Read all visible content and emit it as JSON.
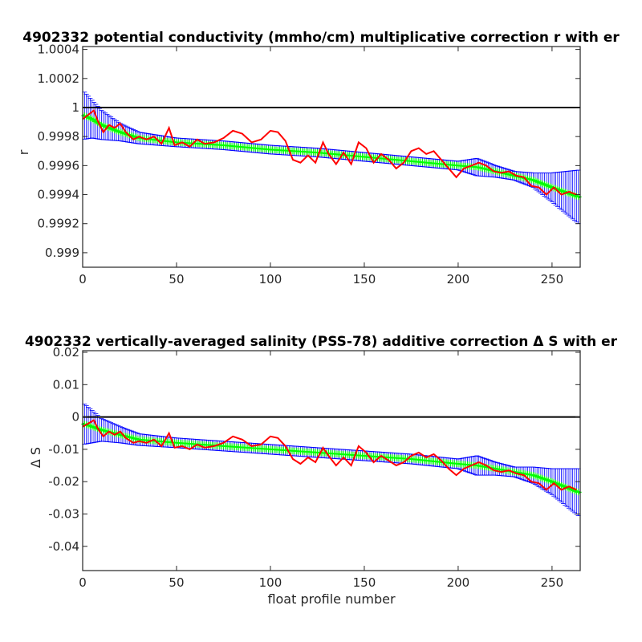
{
  "chart_data": [
    {
      "type": "line",
      "title": "4902332 potential conductivity (mmho/cm) multiplicative correction r with er",
      "xlabel": "",
      "ylabel": "r",
      "xlim": [
        0,
        265
      ],
      "ylim": [
        0.9989,
        1.00042
      ],
      "xticks": [
        0,
        50,
        100,
        150,
        200,
        250
      ],
      "xtick_labels": [
        "0",
        "50",
        "100",
        "150",
        "200",
        "250"
      ],
      "yticks": [
        0.999,
        0.9992,
        0.9994,
        0.9996,
        0.9998,
        1,
        1.0002,
        1.0004
      ],
      "ytick_labels": [
        "0.999",
        "0.9992",
        "0.9994",
        "0.9996",
        "0.9998",
        "1",
        "1.0002",
        "1.0004"
      ],
      "reference_line": 1,
      "series": [
        {
          "role": "fit",
          "color": "#00ff00",
          "error_color": "#0000ff",
          "x": [
            0,
            5,
            10,
            20,
            30,
            50,
            75,
            100,
            125,
            150,
            175,
            200,
            210,
            220,
            230,
            240,
            250,
            265
          ],
          "y": [
            0.99995,
            0.99992,
            0.99988,
            0.99983,
            0.99979,
            0.99976,
            0.99974,
            0.99971,
            0.99969,
            0.99966,
            0.99963,
            0.9996,
            0.99959,
            0.99956,
            0.99953,
            0.9995,
            0.99945,
            0.99938
          ],
          "err": [
            0.00017,
            0.00013,
            0.0001,
            6e-05,
            4e-05,
            3e-05,
            3e-05,
            3e-05,
            3e-05,
            3e-05,
            3e-05,
            3e-05,
            6e-05,
            4e-05,
            3e-05,
            5e-05,
            0.0001,
            0.00019
          ]
        },
        {
          "role": "raw",
          "color": "#ff0000",
          "x": [
            0,
            3,
            6,
            8,
            11,
            14,
            17,
            20,
            23,
            27,
            30,
            34,
            38,
            42,
            46,
            49,
            53,
            57,
            61,
            65,
            70,
            75,
            80,
            85,
            90,
            95,
            100,
            104,
            108,
            112,
            116,
            120,
            124,
            128,
            131,
            135,
            139,
            143,
            147,
            151,
            155,
            159,
            163,
            167,
            171,
            175,
            179,
            183,
            187,
            191,
            195,
            199,
            203,
            207,
            211,
            215,
            219,
            223,
            227,
            231,
            235,
            239,
            243,
            247,
            251,
            255,
            259,
            263
          ],
          "y": [
            0.99992,
            0.99995,
            0.99998,
            0.99991,
            0.99983,
            0.99988,
            0.99986,
            0.99989,
            0.99983,
            0.99978,
            0.9998,
            0.99978,
            0.9998,
            0.99975,
            0.99986,
            0.99974,
            0.99976,
            0.99973,
            0.99978,
            0.99975,
            0.99976,
            0.99979,
            0.99984,
            0.99982,
            0.99976,
            0.99978,
            0.99984,
            0.99983,
            0.99977,
            0.99964,
            0.99962,
            0.99967,
            0.99962,
            0.99976,
            0.99968,
            0.99961,
            0.99969,
            0.99961,
            0.99976,
            0.99972,
            0.99962,
            0.99968,
            0.99964,
            0.99958,
            0.99962,
            0.9997,
            0.99972,
            0.99968,
            0.9997,
            0.99964,
            0.99958,
            0.99952,
            0.99958,
            0.9996,
            0.99962,
            0.9996,
            0.99956,
            0.99955,
            0.99956,
            0.99953,
            0.99952,
            0.99946,
            0.99945,
            0.9994,
            0.99945,
            0.9994,
            0.99942,
            0.9994
          ]
        }
      ]
    },
    {
      "type": "line",
      "title": "4902332 vertically-averaged salinity (PSS-78) additive correction Δ S with er",
      "xlabel": "float profile number",
      "ylabel": "Δ S",
      "xlim": [
        0,
        265
      ],
      "ylim": [
        -0.0475,
        0.0205
      ],
      "xticks": [
        0,
        50,
        100,
        150,
        200,
        250
      ],
      "xtick_labels": [
        "0",
        "50",
        "100",
        "150",
        "200",
        "250"
      ],
      "yticks": [
        -0.04,
        -0.03,
        -0.02,
        -0.01,
        0,
        0.01,
        0.02
      ],
      "ytick_labels": [
        "-0.04",
        "-0.03",
        "-0.02",
        "-0.01",
        "0",
        "0.01",
        "0.02"
      ],
      "reference_line": 0,
      "series": [
        {
          "role": "fit",
          "color": "#00ff00",
          "error_color": "#0000ff",
          "x": [
            0,
            5,
            10,
            20,
            30,
            50,
            75,
            100,
            125,
            150,
            175,
            200,
            210,
            220,
            230,
            240,
            250,
            265
          ],
          "y": [
            -0.002,
            -0.003,
            -0.004,
            -0.0055,
            -0.007,
            -0.008,
            -0.009,
            -0.01,
            -0.011,
            -0.012,
            -0.013,
            -0.0145,
            -0.015,
            -0.016,
            -0.017,
            -0.018,
            -0.02,
            -0.0235
          ],
          "err": [
            0.0065,
            0.005,
            0.0035,
            0.0025,
            0.0018,
            0.0015,
            0.0015,
            0.0015,
            0.0015,
            0.0015,
            0.0015,
            0.0015,
            0.003,
            0.002,
            0.0015,
            0.0025,
            0.004,
            0.0075
          ]
        },
        {
          "role": "raw",
          "color": "#ff0000",
          "x": [
            0,
            3,
            6,
            8,
            11,
            14,
            17,
            20,
            23,
            27,
            30,
            34,
            38,
            42,
            46,
            49,
            53,
            57,
            61,
            65,
            70,
            75,
            80,
            85,
            90,
            95,
            100,
            104,
            108,
            112,
            116,
            120,
            124,
            128,
            131,
            135,
            139,
            143,
            147,
            151,
            155,
            159,
            163,
            167,
            171,
            175,
            179,
            183,
            187,
            191,
            195,
            199,
            203,
            207,
            211,
            215,
            219,
            223,
            227,
            231,
            235,
            239,
            243,
            247,
            251,
            255,
            259,
            263
          ],
          "y": [
            -0.003,
            -0.002,
            -0.001,
            -0.0035,
            -0.006,
            -0.0045,
            -0.0055,
            -0.0045,
            -0.0065,
            -0.008,
            -0.0075,
            -0.008,
            -0.007,
            -0.009,
            -0.005,
            -0.0095,
            -0.009,
            -0.01,
            -0.0085,
            -0.0095,
            -0.009,
            -0.008,
            -0.006,
            -0.007,
            -0.009,
            -0.0085,
            -0.006,
            -0.0065,
            -0.009,
            -0.013,
            -0.0145,
            -0.0125,
            -0.014,
            -0.0095,
            -0.012,
            -0.015,
            -0.0125,
            -0.015,
            -0.009,
            -0.011,
            -0.014,
            -0.012,
            -0.0135,
            -0.015,
            -0.014,
            -0.012,
            -0.011,
            -0.0125,
            -0.0115,
            -0.0135,
            -0.016,
            -0.018,
            -0.016,
            -0.015,
            -0.014,
            -0.015,
            -0.0165,
            -0.017,
            -0.0165,
            -0.0175,
            -0.018,
            -0.02,
            -0.0205,
            -0.0225,
            -0.0205,
            -0.0225,
            -0.0215,
            -0.0225
          ]
        }
      ]
    }
  ]
}
